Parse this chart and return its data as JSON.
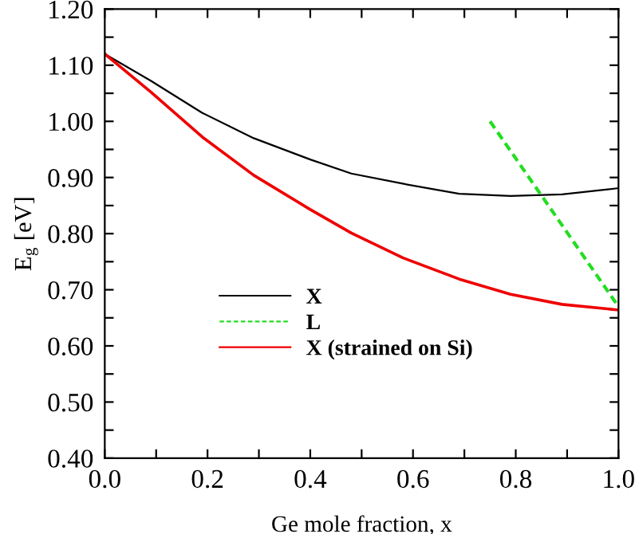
{
  "chart_data": {
    "type": "line",
    "xlabel": "Ge mole fraction, x",
    "ylabel": "E$_{g}$ [eV]",
    "series": [
      {
        "name": "X",
        "color": "#000000",
        "line_style": "solid",
        "x": [
          0,
          0.09,
          0.19,
          0.29,
          0.4,
          0.48,
          0.58,
          0.69,
          0.79,
          0.89,
          1.0
        ],
        "values": [
          1.12,
          1.072,
          1.015,
          0.97,
          0.932,
          0.907,
          0.889,
          0.871,
          0.867,
          0.87,
          0.881
        ]
      },
      {
        "name": "L",
        "color": "#22dd22",
        "line_style": "dashed",
        "x": [
          0.75,
          1.0
        ],
        "values": [
          1.0,
          0.67
        ]
      },
      {
        "name": "X (strained on Si)",
        "color": "#ee0000",
        "line_style": "solid",
        "x": [
          0,
          0.09,
          0.19,
          0.29,
          0.4,
          0.48,
          0.58,
          0.69,
          0.79,
          0.89,
          1.0
        ],
        "values": [
          1.12,
          1.052,
          0.972,
          0.904,
          0.843,
          0.801,
          0.757,
          0.719,
          0.692,
          0.674,
          0.664
        ]
      }
    ],
    "xlim": [
      0,
      1.0
    ],
    "ylim": [
      0.4,
      1.2
    ],
    "xticks": [
      {
        "value": 0,
        "label": "0.0"
      },
      {
        "value": 0.1,
        "label": null
      },
      {
        "value": 0.2,
        "label": "0.2"
      },
      {
        "value": 0.3,
        "label": null
      },
      {
        "value": 0.4,
        "label": "0.4"
      },
      {
        "value": 0.5,
        "label": null
      },
      {
        "value": 0.6,
        "label": "0.6"
      },
      {
        "value": 0.7,
        "label": null
      },
      {
        "value": 0.8,
        "label": "0.8"
      },
      {
        "value": 0.9,
        "label": null
      },
      {
        "value": 1.0,
        "label": "1.0"
      }
    ],
    "yticks": [
      {
        "value": 0.4,
        "label": "0.40"
      },
      {
        "value": 0.45,
        "label": null
      },
      {
        "value": 0.5,
        "label": "0.50"
      },
      {
        "value": 0.55,
        "label": null
      },
      {
        "value": 0.6,
        "label": "0.60"
      },
      {
        "value": 0.65,
        "label": null
      },
      {
        "value": 0.7,
        "label": "0.70"
      },
      {
        "value": 0.75,
        "label": null
      },
      {
        "value": 0.8,
        "label": "0.80"
      },
      {
        "value": 0.85,
        "label": null
      },
      {
        "value": 0.9,
        "label": "0.90"
      },
      {
        "value": 0.95,
        "label": null
      },
      {
        "value": 1.0,
        "label": "1.00"
      },
      {
        "value": 1.05,
        "label": null
      },
      {
        "value": 1.1,
        "label": "1.10"
      },
      {
        "value": 1.15,
        "label": null
      },
      {
        "value": 1.2,
        "label": "1.20"
      }
    ],
    "grid": false,
    "legend": "bottom",
    "marker": "none"
  }
}
